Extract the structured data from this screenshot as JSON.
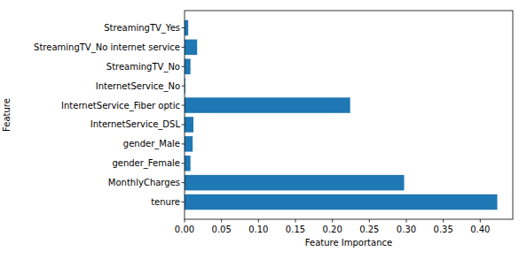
{
  "chart_data": {
    "type": "bar",
    "orientation": "horizontal",
    "x_label": "Feature Importance",
    "y_label": "Feature",
    "categories": [
      "tenure",
      "MonthlyCharges",
      "gender_Female",
      "gender_Male",
      "InternetService_DSL",
      "InternetService_Fiber optic",
      "InternetService_No",
      "StreamingTV_No",
      "StreamingTV_No internet service",
      "StreamingTV_Yes"
    ],
    "values": [
      0.423,
      0.297,
      0.008,
      0.011,
      0.012,
      0.224,
      0.001,
      0.008,
      0.017,
      0.005
    ],
    "color": "#1f77b4",
    "xlim": [
      0,
      0.444
    ],
    "xticks": [
      {
        "value": 0,
        "label": "0.00"
      },
      {
        "value": 0.05,
        "label": "0.05"
      },
      {
        "value": 0.1,
        "label": "0.10"
      },
      {
        "value": 0.15,
        "label": "0.15"
      },
      {
        "value": 0.2,
        "label": "0.20"
      },
      {
        "value": 0.25,
        "label": "0.25"
      },
      {
        "value": 0.3,
        "label": "0.30"
      },
      {
        "value": 0.35,
        "label": "0.35"
      },
      {
        "value": 0.4,
        "label": "0.40"
      }
    ],
    "grid": false
  }
}
